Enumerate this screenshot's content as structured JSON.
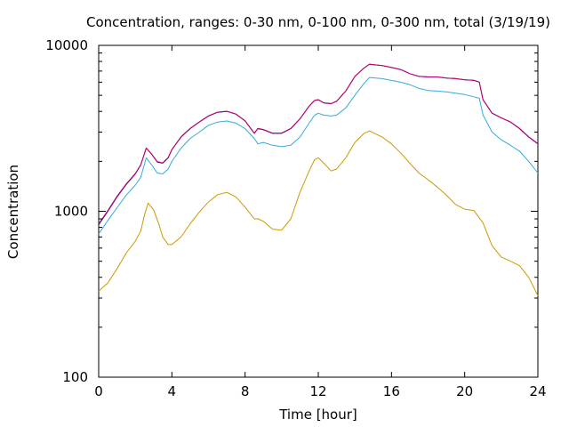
{
  "chart_data": {
    "type": "line",
    "title": "Concentration, ranges: 0-30 nm, 0-100 nm, 0-300 nm, total (3/19/19)",
    "xlabel": "Time [hour]",
    "ylabel": "Concentration",
    "xlim": [
      0,
      24
    ],
    "ylim": [
      100,
      10000
    ],
    "yscale": "log",
    "grid": false,
    "x_ticks": [
      "0",
      "4",
      "8",
      "12",
      "16",
      "20",
      "24"
    ],
    "y_ticks": [
      "100",
      "1000",
      "10000"
    ],
    "series": [
      {
        "color": "#cc9900",
        "x": [
          0,
          0.5,
          1,
          1.5,
          2,
          2.3,
          2.5,
          2.7,
          3,
          3.3,
          3.5,
          3.8,
          4,
          4.5,
          5,
          5.5,
          6,
          6.5,
          7,
          7.5,
          8,
          8.5,
          8.7,
          9,
          9.5,
          10,
          10.5,
          11,
          11.5,
          11.8,
          12,
          12.3,
          12.7,
          13,
          13.5,
          14,
          14.5,
          14.8,
          15.5,
          16,
          16.5,
          17,
          17.5,
          18,
          18.5,
          19,
          19.5,
          20,
          20.5,
          21,
          21.5,
          22,
          22.5,
          23,
          23.5,
          24
        ],
        "y": [
          330,
          370,
          450,
          560,
          660,
          760,
          950,
          1120,
          1020,
          830,
          700,
          630,
          630,
          700,
          840,
          990,
          1140,
          1260,
          1300,
          1220,
          1060,
          900,
          900,
          870,
          780,
          770,
          900,
          1300,
          1750,
          2050,
          2100,
          1950,
          1750,
          1800,
          2100,
          2600,
          2950,
          3050,
          2800,
          2550,
          2250,
          1950,
          1700,
          1550,
          1400,
          1250,
          1100,
          1030,
          1010,
          850,
          620,
          530,
          500,
          470,
          400,
          310
        ]
      },
      {
        "color": "#33aadd",
        "x": [
          0,
          0.5,
          1,
          1.5,
          2,
          2.3,
          2.6,
          2.9,
          3.2,
          3.5,
          3.8,
          4,
          4.5,
          5,
          5.5,
          6,
          6.5,
          7,
          7.5,
          8,
          8.5,
          8.7,
          9,
          9.5,
          10,
          10.5,
          11,
          11.5,
          11.8,
          12,
          12.3,
          12.7,
          13,
          13.5,
          14,
          14.5,
          14.8,
          15.5,
          16,
          16.5,
          17,
          17.5,
          18,
          18.5,
          19,
          19.5,
          20,
          20.5,
          20.8,
          21,
          21.5,
          22,
          22.5,
          23,
          23.5,
          24
        ],
        "y": [
          730,
          880,
          1050,
          1250,
          1440,
          1600,
          2100,
          1900,
          1700,
          1680,
          1800,
          2000,
          2400,
          2750,
          3000,
          3300,
          3450,
          3500,
          3400,
          3150,
          2750,
          2550,
          2600,
          2500,
          2450,
          2500,
          2800,
          3400,
          3800,
          3900,
          3800,
          3750,
          3800,
          4200,
          5000,
          5900,
          6400,
          6300,
          6150,
          6000,
          5800,
          5500,
          5350,
          5300,
          5250,
          5150,
          5050,
          4900,
          4800,
          3800,
          3000,
          2700,
          2500,
          2300,
          2000,
          1700
        ]
      },
      {
        "color": "#0000aa",
        "x": [
          0,
          0.5,
          1,
          1.5,
          2,
          2.3,
          2.6,
          2.9,
          3.2,
          3.5,
          3.8,
          4,
          4.5,
          5,
          5.5,
          6,
          6.5,
          7,
          7.5,
          8,
          8.5,
          8.7,
          9,
          9.5,
          10,
          10.5,
          11,
          11.5,
          11.8,
          12,
          12.3,
          12.7,
          13,
          13.5,
          14,
          14.5,
          14.8,
          15.5,
          16,
          16.5,
          17,
          17.5,
          18,
          18.5,
          19,
          19.5,
          20,
          20.5,
          20.8,
          21,
          21.5,
          22,
          22.5,
          23,
          23.5,
          24
        ],
        "y": [
          830,
          1000,
          1220,
          1450,
          1680,
          1900,
          2400,
          2200,
          1980,
          1950,
          2100,
          2350,
          2800,
          3150,
          3450,
          3750,
          3950,
          4000,
          3850,
          3500,
          2950,
          3150,
          3100,
          2950,
          2950,
          3150,
          3600,
          4300,
          4650,
          4700,
          4500,
          4450,
          4600,
          5300,
          6500,
          7300,
          7700,
          7550,
          7350,
          7150,
          6750,
          6500,
          6450,
          6450,
          6350,
          6300,
          6200,
          6150,
          6000,
          4700,
          3900,
          3650,
          3450,
          3150,
          2800,
          2550
        ]
      },
      {
        "color": "#cc0066",
        "x": [
          0,
          0.5,
          1,
          1.5,
          2,
          2.3,
          2.6,
          2.9,
          3.2,
          3.5,
          3.8,
          4,
          4.5,
          5,
          5.5,
          6,
          6.5,
          7,
          7.5,
          8,
          8.5,
          8.7,
          9,
          9.5,
          10,
          10.5,
          11,
          11.5,
          11.8,
          12,
          12.3,
          12.7,
          13,
          13.5,
          14,
          14.5,
          14.8,
          15.5,
          16,
          16.5,
          17,
          17.5,
          18,
          18.5,
          19,
          19.5,
          20,
          20.5,
          20.8,
          21,
          21.5,
          22,
          22.5,
          23,
          23.5,
          24
        ],
        "y": [
          840,
          1010,
          1230,
          1460,
          1690,
          1910,
          2410,
          2210,
          1990,
          1960,
          2110,
          2360,
          2810,
          3160,
          3460,
          3760,
          3960,
          4010,
          3860,
          3510,
          2960,
          3160,
          3110,
          2960,
          2960,
          3160,
          3610,
          4310,
          4660,
          4710,
          4510,
          4460,
          4610,
          5310,
          6510,
          7310,
          7710,
          7560,
          7360,
          7160,
          6760,
          6510,
          6460,
          6460,
          6360,
          6310,
          6210,
          6160,
          6010,
          4710,
          3910,
          3660,
          3460,
          3160,
          2810,
          2560
        ]
      }
    ]
  }
}
